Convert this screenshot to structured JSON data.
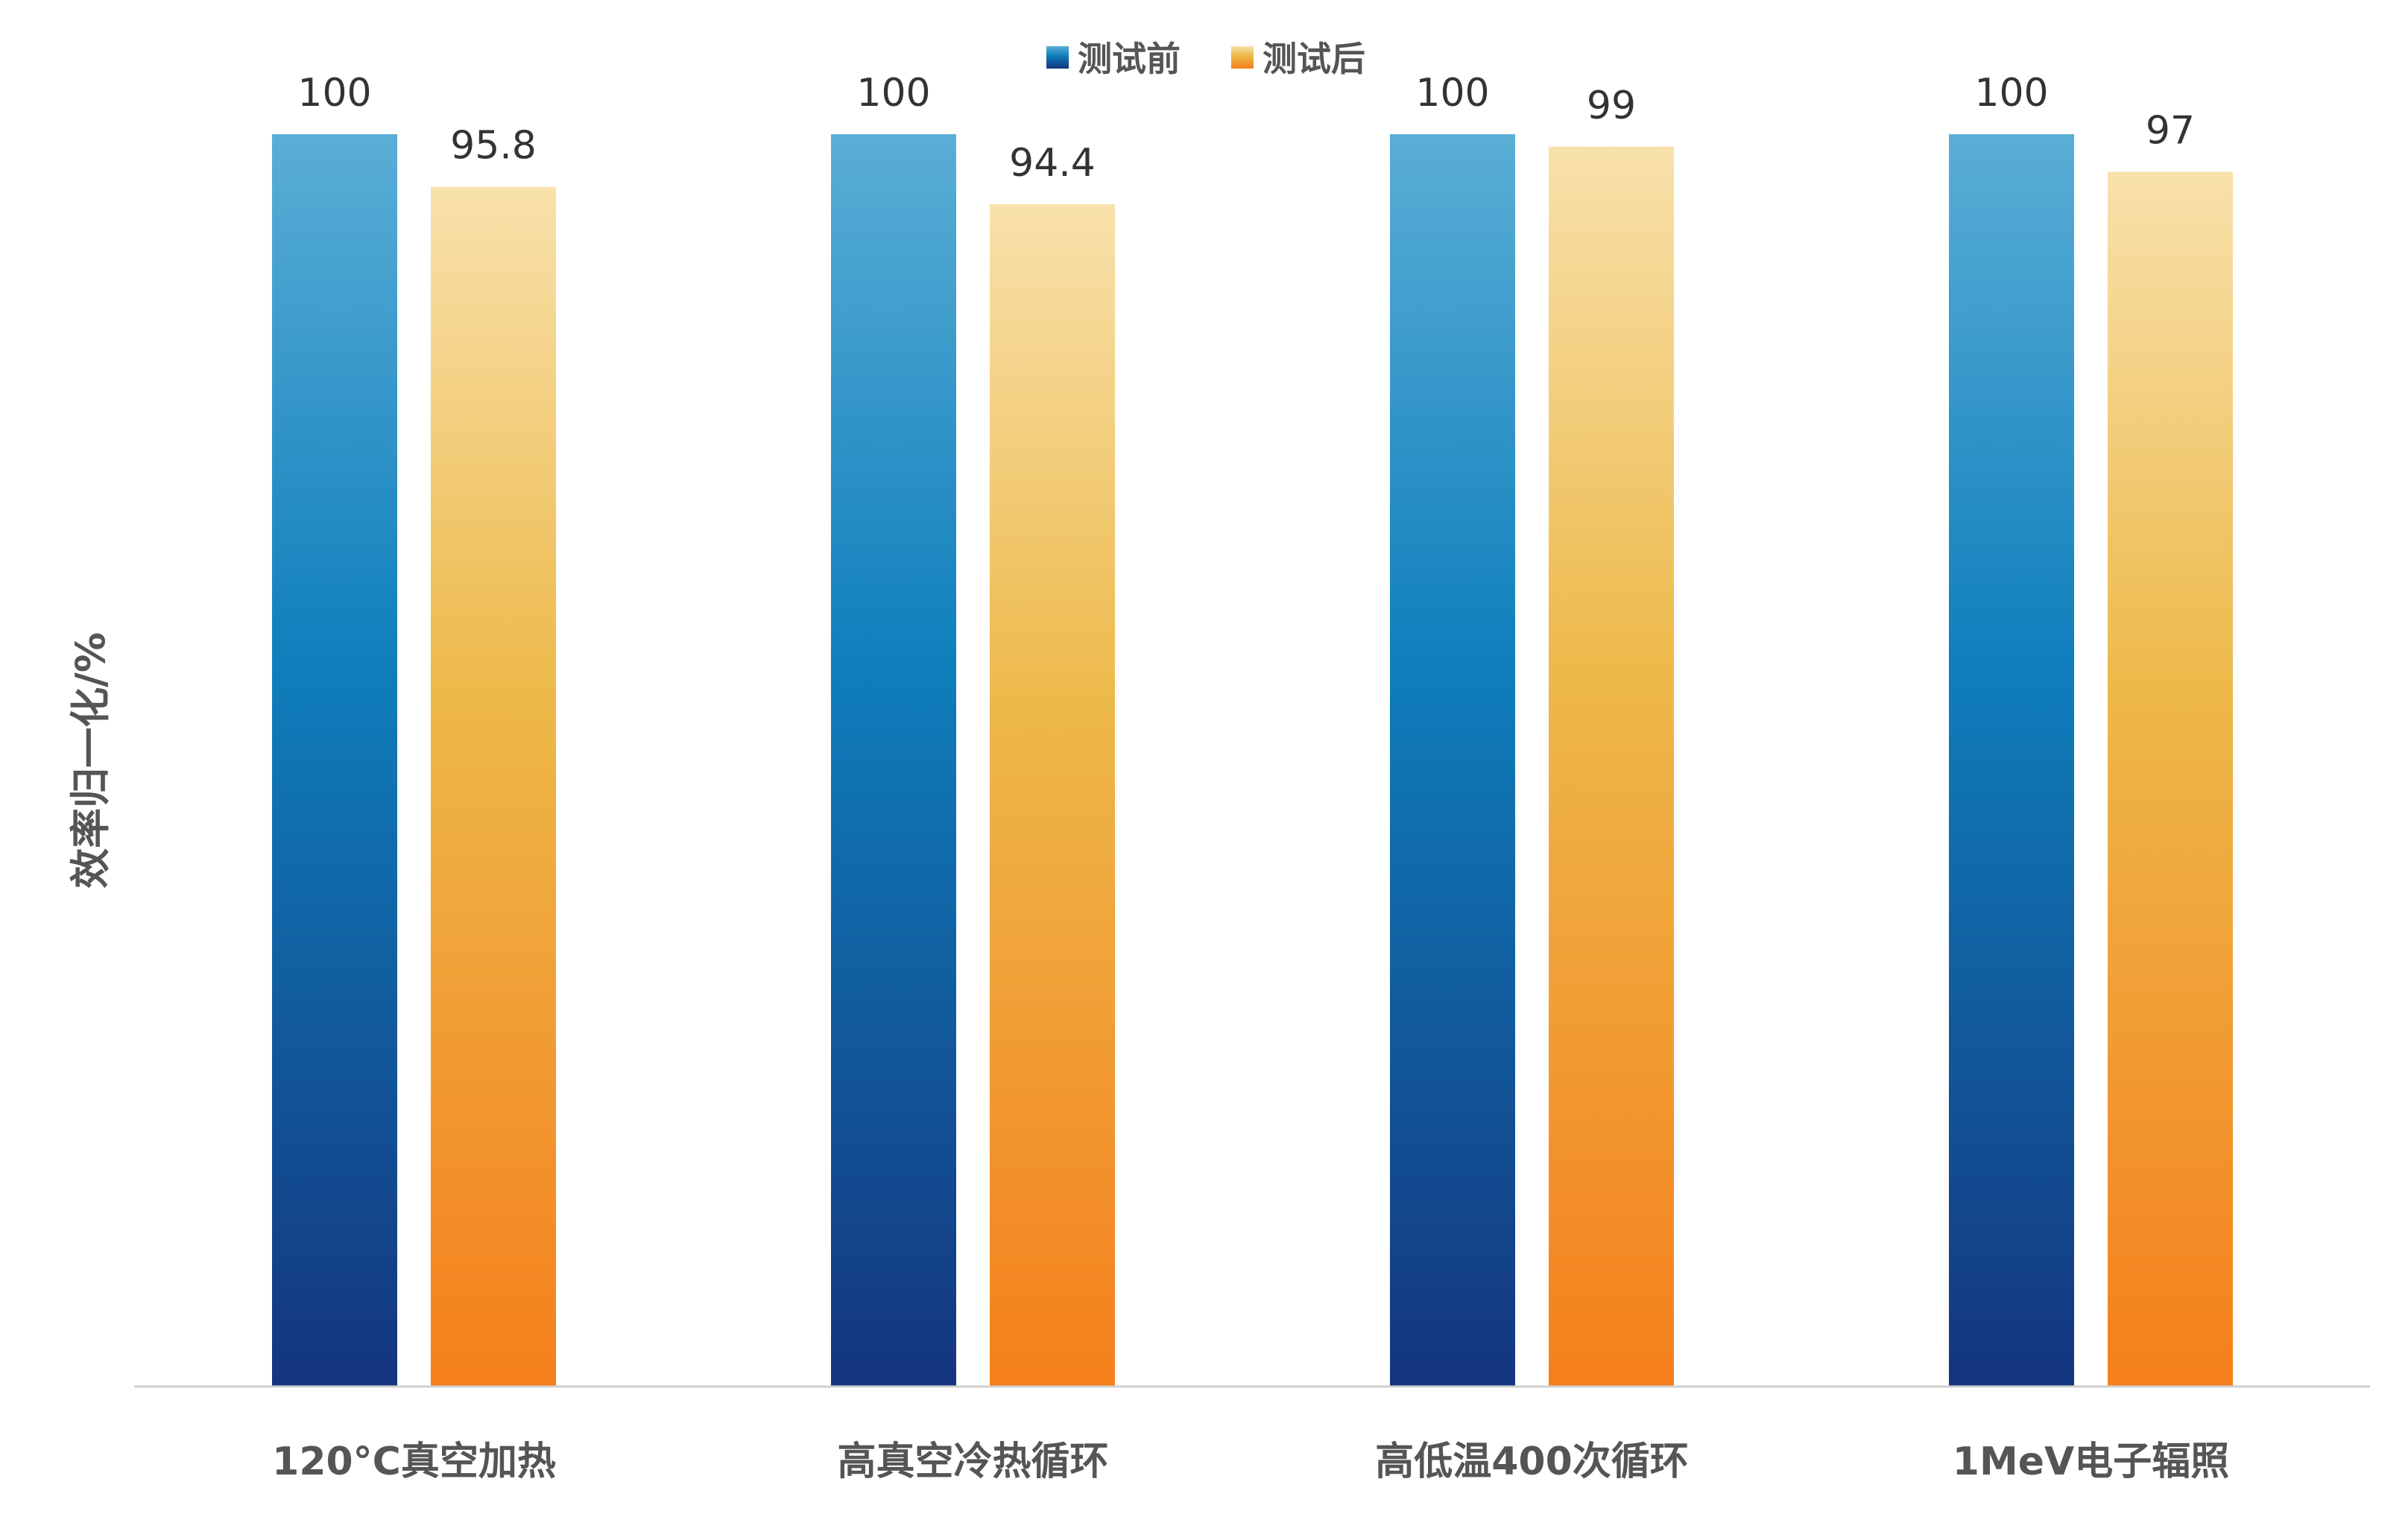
{
  "chart_data": {
    "type": "bar",
    "title": "",
    "xlabel": "",
    "ylabel": "效率归一化/%",
    "ylim": [
      0,
      100
    ],
    "grid": false,
    "legend_position": "top-center",
    "categories": [
      "120°C真空加热",
      "高真空冷热循环",
      "高低温400次循环",
      "1MeV电子辐照"
    ],
    "series": [
      {
        "name": "测试前",
        "values": [
          100,
          100,
          100,
          100
        ],
        "labels": [
          "100",
          "100",
          "100",
          "100"
        ],
        "color_top": "#5aaed6",
        "color_mid": "#0f7fbc",
        "color_bottom": "#14357d"
      },
      {
        "name": "测试后",
        "values": [
          95.8,
          94.4,
          99,
          97
        ],
        "labels": [
          "95.8",
          "94.4",
          "99",
          "97"
        ],
        "color_top": "#f8e1ab",
        "color_mid": "#edb94a",
        "color_bottom": "#f57f1c"
      }
    ]
  }
}
